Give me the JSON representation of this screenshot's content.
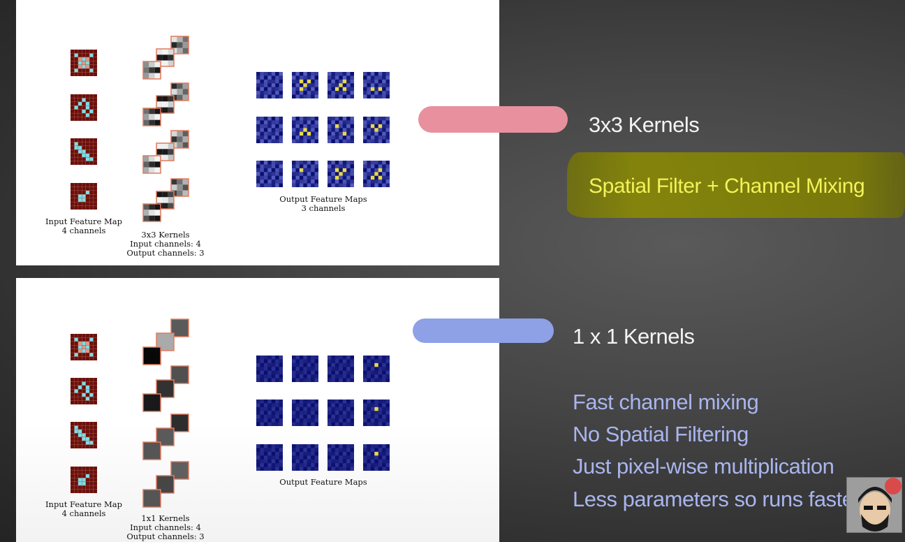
{
  "top_panel": {
    "input_caption": [
      "Input Feature Map",
      "4 channels"
    ],
    "kernel_caption": [
      "3x3 Kernels",
      "Input channels: 4",
      "Output channels: 3"
    ],
    "output_caption": [
      "Output Feature Maps",
      "3 channels"
    ]
  },
  "bottom_panel": {
    "input_caption": [
      "Input Feature Map",
      "4 channels"
    ],
    "kernel_caption": [
      "1x1 Kernels",
      "Input channels: 4",
      "Output channels: 3"
    ],
    "output_caption": [
      "Output Feature Maps"
    ]
  },
  "slides": {
    "heading_3x3": "3x3 Kernels",
    "highlight_3x3": "Spatial Filter + Channel Mixing",
    "heading_1x1": "1 x 1 Kernels",
    "points_1x1": [
      "Fast channel mixing",
      "No Spatial Filtering",
      "Just pixel-wise multiplication",
      "Less parameters so runs faster!"
    ]
  },
  "colors": {
    "feature_map_bg": "#6b0f0a",
    "feature_map_hi": "#7ddde6",
    "feature_map_center": "#e09988",
    "kernel_border": "#e07a5f",
    "output_bg": "#0a0f6e",
    "output_hi": "#e8d94a",
    "pill_pink": "#e8909e",
    "pill_blue": "#8ea1e6",
    "highlight_text": "#f3f35a",
    "blue_text": "#a9b5ee"
  },
  "icons": {
    "avatar": "presenter-avatar-icon"
  }
}
